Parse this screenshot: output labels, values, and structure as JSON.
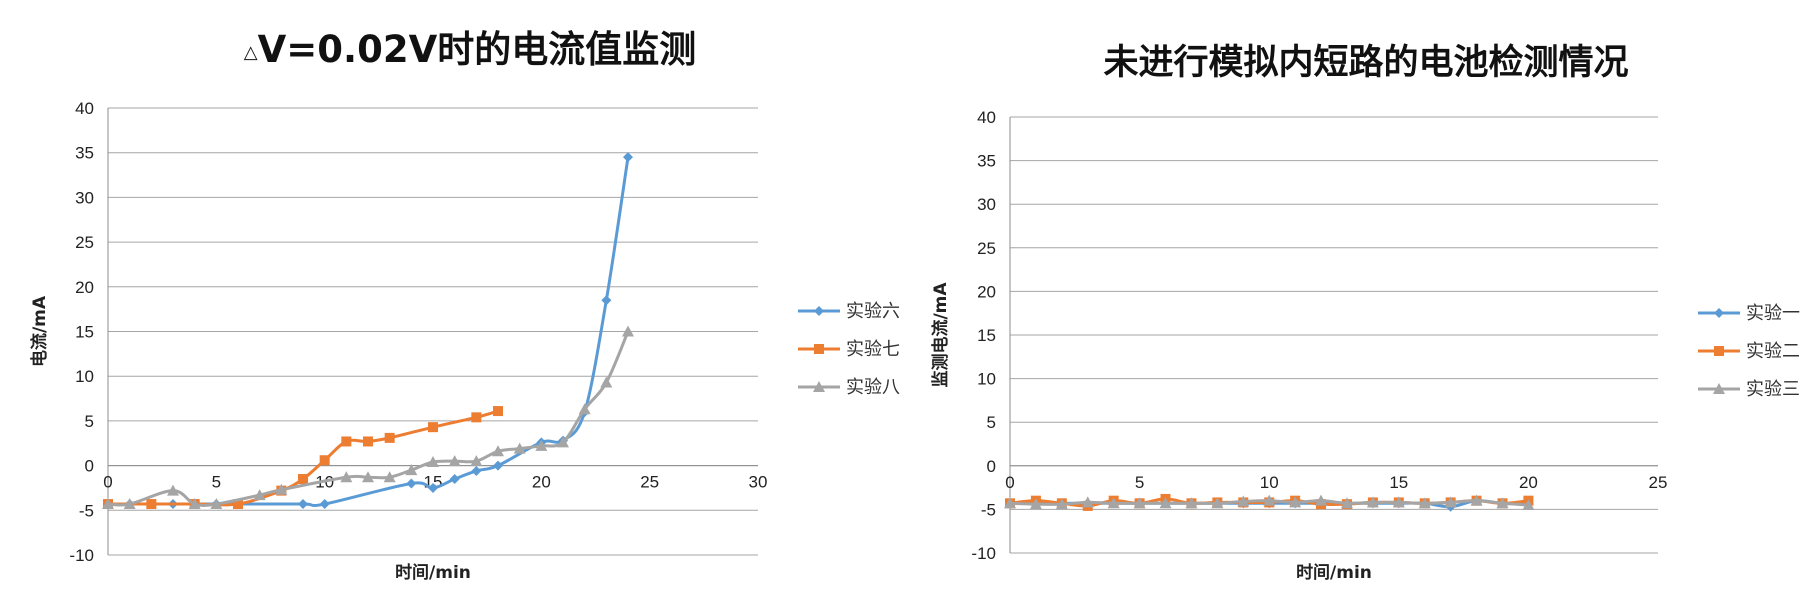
{
  "chart_data": [
    {
      "type": "line",
      "title_prefix": "△",
      "title": "V=0.02V时的电流值监测",
      "xlabel": "时间/min",
      "ylabel": "电流/mA",
      "xlim": [
        0,
        30
      ],
      "ylim": [
        -10,
        40
      ],
      "xticks": [
        0,
        5,
        10,
        15,
        20,
        25,
        30
      ],
      "yticks": [
        -10,
        -5,
        0,
        5,
        10,
        15,
        20,
        25,
        30,
        35,
        40
      ],
      "grid": true,
      "legend": "right",
      "series": [
        {
          "name": "实验六",
          "color": "#5b9bd5",
          "marker": "diamond",
          "x": [
            0,
            1,
            3,
            4,
            5,
            6,
            9,
            10,
            14,
            15,
            16,
            17,
            18,
            20,
            21,
            22,
            23,
            24
          ],
          "y": [
            -4.3,
            -4.3,
            -4.3,
            -4.3,
            -4.3,
            -4.3,
            -4.3,
            -4.3,
            -2.0,
            -2.5,
            -1.5,
            -0.6,
            0.0,
            2.6,
            2.8,
            6.0,
            18.5,
            34.5
          ]
        },
        {
          "name": "实验七",
          "color": "#ed7d31",
          "marker": "square",
          "x": [
            0,
            2,
            4,
            6,
            8,
            9,
            10,
            11,
            12,
            13,
            15,
            17,
            18
          ],
          "y": [
            -4.3,
            -4.3,
            -4.3,
            -4.3,
            -2.8,
            -1.5,
            0.6,
            2.7,
            2.7,
            3.1,
            4.3,
            5.4,
            6.1
          ]
        },
        {
          "name": "实验八",
          "color": "#a5a5a5",
          "marker": "triangle",
          "x": [
            0,
            1,
            3,
            4,
            5,
            7,
            8,
            11,
            12,
            13,
            14,
            15,
            16,
            17,
            18,
            19,
            20,
            21,
            22,
            23,
            24
          ],
          "y": [
            -4.3,
            -4.3,
            -2.8,
            -4.3,
            -4.3,
            -3.3,
            -2.7,
            -1.3,
            -1.3,
            -1.3,
            -0.5,
            0.4,
            0.5,
            0.5,
            1.6,
            1.9,
            2.2,
            2.6,
            6.3,
            9.3,
            15.0
          ]
        }
      ]
    },
    {
      "type": "line",
      "title": "未进行模拟内短路的电池检测情况",
      "xlabel": "时间/min",
      "ylabel": "监测电流/mA",
      "xlim": [
        0,
        25
      ],
      "ylim": [
        -10,
        40
      ],
      "xticks": [
        0,
        5,
        10,
        15,
        20,
        25
      ],
      "yticks": [
        -10,
        -5,
        0,
        5,
        10,
        15,
        20,
        25,
        30,
        35,
        40
      ],
      "grid": true,
      "legend": "right",
      "series": [
        {
          "name": "实验一",
          "color": "#5b9bd5",
          "marker": "diamond",
          "x": [
            0,
            1,
            2,
            3,
            4,
            5,
            6,
            7,
            8,
            9,
            10,
            11,
            12,
            13,
            14,
            15,
            16,
            17,
            18,
            19,
            20
          ],
          "y": [
            -4.3,
            -4.3,
            -4.3,
            -4.3,
            -4.3,
            -4.3,
            -4.3,
            -4.3,
            -4.3,
            -4.3,
            -4.3,
            -4.3,
            -4.3,
            -4.3,
            -4.3,
            -4.3,
            -4.3,
            -4.7,
            -4.0,
            -4.3,
            -4.3
          ]
        },
        {
          "name": "实验二",
          "color": "#ed7d31",
          "marker": "square",
          "x": [
            0,
            1,
            2,
            3,
            4,
            5,
            6,
            7,
            8,
            9,
            10,
            11,
            12,
            13,
            14,
            15,
            16,
            17,
            18,
            19,
            20
          ],
          "y": [
            -4.3,
            -4.0,
            -4.3,
            -4.6,
            -4.0,
            -4.3,
            -3.8,
            -4.3,
            -4.2,
            -4.2,
            -4.2,
            -4.0,
            -4.4,
            -4.4,
            -4.2,
            -4.2,
            -4.3,
            -4.2,
            -4.0,
            -4.3,
            -4.0
          ]
        },
        {
          "name": "实验三",
          "color": "#a5a5a5",
          "marker": "triangle",
          "x": [
            0,
            1,
            2,
            3,
            4,
            5,
            6,
            7,
            8,
            9,
            10,
            11,
            12,
            13,
            14,
            15,
            16,
            17,
            18,
            19,
            20
          ],
          "y": [
            -4.3,
            -4.4,
            -4.4,
            -4.2,
            -4.3,
            -4.3,
            -4.3,
            -4.3,
            -4.3,
            -4.1,
            -4.0,
            -4.2,
            -4.0,
            -4.3,
            -4.2,
            -4.2,
            -4.3,
            -4.2,
            -4.0,
            -4.3,
            -4.5
          ]
        }
      ]
    }
  ]
}
